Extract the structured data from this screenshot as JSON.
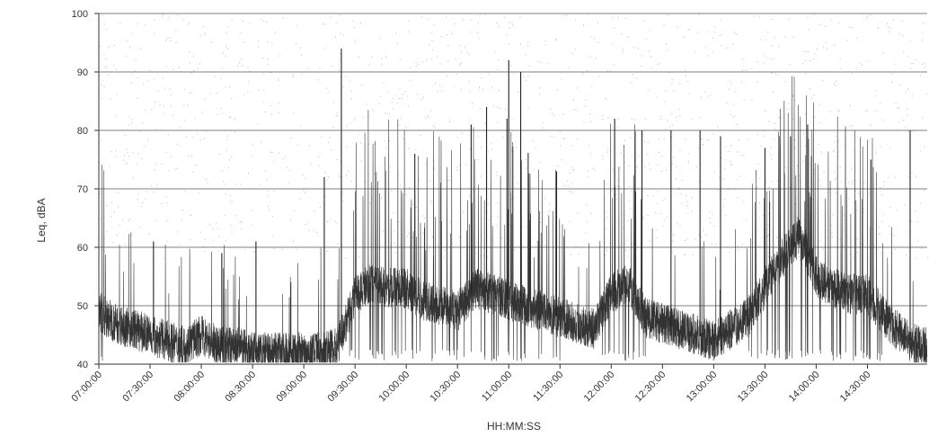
{
  "chart_data": {
    "type": "line",
    "title": "",
    "xlabel": "HH:MM:SS",
    "ylabel": "Leq, dBA",
    "ylim": [
      40,
      100
    ],
    "yticks": [
      40,
      50,
      60,
      70,
      80,
      90,
      100
    ],
    "xlim": [
      "07:00:00",
      "15:05:00"
    ],
    "xticks": [
      "07:00:00",
      "07:30:00",
      "08:00:00",
      "08:30:00",
      "09:00:00",
      "09:30:00",
      "10:00:00",
      "10:30:00",
      "11:00:00",
      "11:30:00",
      "12:00:00",
      "12:30:00",
      "13:00:00",
      "13:30:00",
      "14:00:00",
      "14:30:00"
    ],
    "grid": "horizontal",
    "legend": "none",
    "line_color": "#333333",
    "series": [
      {
        "x": [
          "07:00:00",
          "07:10:00",
          "07:20:00",
          "07:30:00",
          "07:40:00",
          "07:50:00",
          "08:00:00",
          "08:10:00",
          "08:20:00",
          "08:30:00",
          "08:40:00",
          "08:50:00",
          "09:00:00",
          "09:10:00",
          "09:20:00",
          "09:30:00",
          "09:40:00",
          "09:50:00",
          "10:00:00",
          "10:10:00",
          "10:20:00",
          "10:30:00",
          "10:40:00",
          "10:50:00",
          "11:00:00",
          "11:10:00",
          "11:20:00",
          "11:30:00",
          "11:40:00",
          "11:50:00",
          "12:00:00",
          "12:10:00",
          "12:20:00",
          "12:30:00",
          "12:40:00",
          "12:50:00",
          "13:00:00",
          "13:10:00",
          "13:20:00",
          "13:30:00",
          "13:40:00",
          "13:50:00",
          "14:00:00",
          "14:10:00",
          "14:20:00",
          "14:30:00",
          "14:40:00",
          "14:50:00",
          "15:00:00"
        ],
        "values": [
          49,
          47,
          46,
          45,
          44,
          43,
          45,
          43,
          43,
          42,
          42,
          42,
          42,
          42,
          43,
          52,
          54,
          53,
          53,
          51,
          50,
          49,
          53,
          52,
          51,
          50,
          49,
          48,
          47,
          46,
          52,
          54,
          48,
          47,
          46,
          45,
          44,
          46,
          48,
          53,
          58,
          62,
          55,
          53,
          52,
          52,
          48,
          45,
          43
        ]
      }
    ],
    "peaks": [
      {
        "x": "07:32:00",
        "y": 61
      },
      {
        "x": "08:12:00",
        "y": 59
      },
      {
        "x": "08:32:00",
        "y": 61
      },
      {
        "x": "09:12:00",
        "y": 72
      },
      {
        "x": "09:22:00",
        "y": 94
      },
      {
        "x": "10:05:00",
        "y": 76
      },
      {
        "x": "10:38:00",
        "y": 81
      },
      {
        "x": "10:47:00",
        "y": 84
      },
      {
        "x": "10:59:00",
        "y": 82
      },
      {
        "x": "11:00:00",
        "y": 92
      },
      {
        "x": "11:07:00",
        "y": 90
      },
      {
        "x": "11:28:00",
        "y": 73
      },
      {
        "x": "12:02:00",
        "y": 82
      },
      {
        "x": "12:18:00",
        "y": 80
      },
      {
        "x": "12:35:00",
        "y": 80
      },
      {
        "x": "12:52:00",
        "y": 80
      },
      {
        "x": "13:04:00",
        "y": 79
      },
      {
        "x": "13:30:00",
        "y": 77
      },
      {
        "x": "13:45:00",
        "y": 79
      },
      {
        "x": "13:55:00",
        "y": 81
      },
      {
        "x": "14:32:00",
        "y": 75
      },
      {
        "x": "14:55:00",
        "y": 80
      }
    ]
  }
}
